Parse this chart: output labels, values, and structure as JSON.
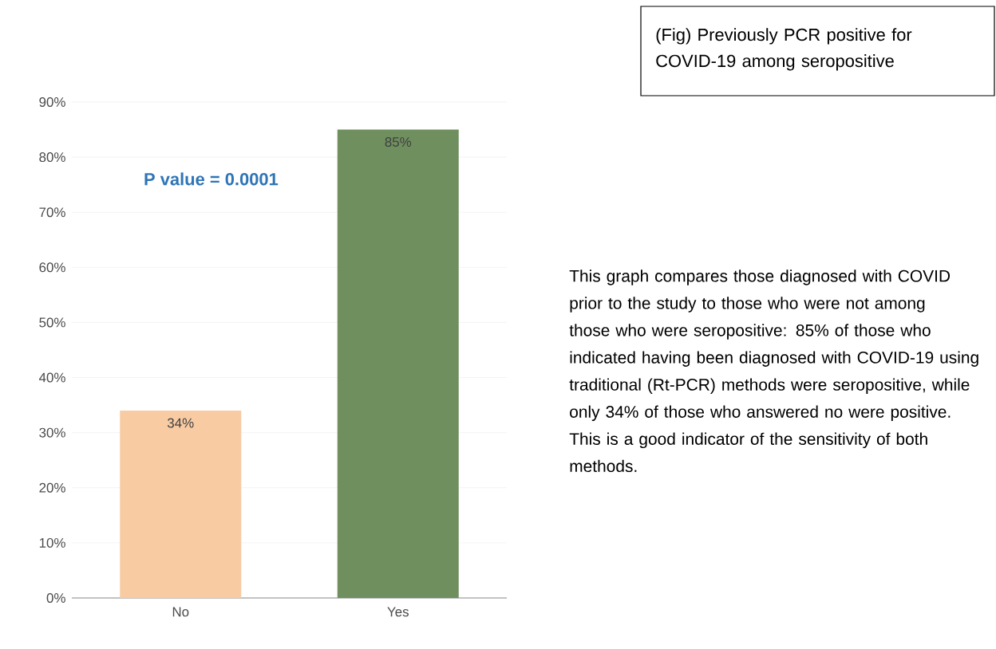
{
  "chart_data": {
    "type": "bar",
    "title": "(Fig) Previously PCR positive for COVID-19 among seropositive",
    "categories": [
      "No",
      "Yes"
    ],
    "values": [
      34,
      85
    ],
    "colors": [
      "#f8cba3",
      "#6f8f5e"
    ],
    "value_labels": [
      "34%",
      "85%"
    ],
    "ylim": [
      0,
      90
    ],
    "yticks": [
      {
        "value": 0,
        "label": "0%"
      },
      {
        "value": 10,
        "label": "10%"
      },
      {
        "value": 20,
        "label": "20%"
      },
      {
        "value": 30,
        "label": "30%"
      },
      {
        "value": 40,
        "label": "40%"
      },
      {
        "value": 50,
        "label": "50%"
      },
      {
        "value": 60,
        "label": "60%"
      },
      {
        "value": 70,
        "label": "70%"
      },
      {
        "value": 80,
        "label": "80%"
      },
      {
        "value": 90,
        "label": "90%"
      }
    ],
    "grid": "y",
    "annotations": [
      "P value = 0.0001",
      "This graph compares those diagnosed with COVID prior to the study to those who were not among those who were seropositive: 85% of those who indicated having been diagnosed with COVID-19 using traditional (Rt-PCR) methods were seropositive, while only 34% of those who answered no were positive. This is a good indicator of the sensitivity of both methods."
    ]
  }
}
